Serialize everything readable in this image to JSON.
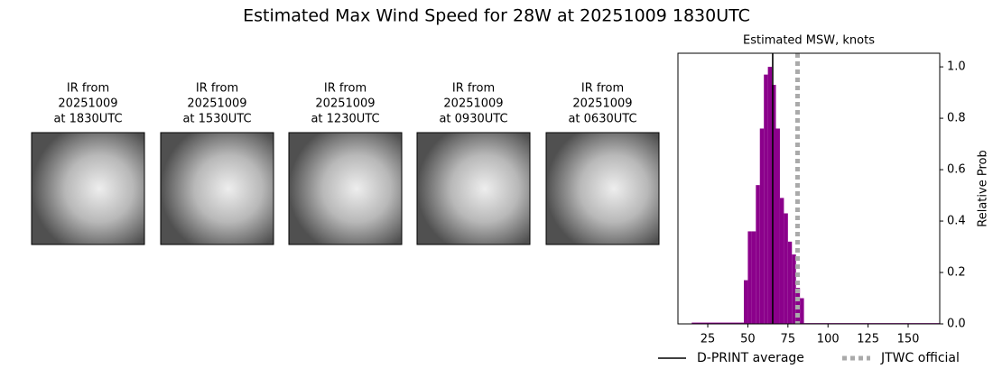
{
  "title": "Estimated Max Wind Speed for 28W at 20251009 1830UTC",
  "panels": [
    {
      "lines": [
        "IR from",
        "20251009",
        "at 1830UTC"
      ]
    },
    {
      "lines": [
        "IR from",
        "20251009",
        "at 1530UTC"
      ]
    },
    {
      "lines": [
        "IR from",
        "20251009",
        "at 1230UTC"
      ]
    },
    {
      "lines": [
        "IR from",
        "20251009",
        "at 0930UTC"
      ]
    },
    {
      "lines": [
        "IR from",
        "20251009",
        "at 0630UTC"
      ]
    }
  ],
  "chart_data": {
    "type": "histogram",
    "title": "Estimated MSW, knots",
    "ylabel": "Relative Prob",
    "bins": [
      15,
      47.5,
      50,
      52.5,
      55,
      57.5,
      60,
      62.5,
      65,
      67.5,
      70,
      72.5,
      75,
      77.5,
      80,
      82.5,
      85,
      170
    ],
    "values": [
      0.005,
      0.17,
      0.36,
      0.36,
      0.54,
      0.76,
      0.97,
      1.0,
      0.93,
      0.76,
      0.49,
      0.43,
      0.32,
      0.27,
      0.14,
      0.1,
      0.003
    ],
    "color": "#8b008b",
    "xlim": [
      6.4,
      169.7
    ],
    "ylim": [
      0,
      1.053
    ],
    "xticks": [
      25,
      50,
      75,
      100,
      125,
      150
    ],
    "yticks": [
      {
        "value": 0,
        "label": "0.0"
      },
      {
        "value": 0.2,
        "label": "0.2"
      },
      {
        "value": 0.4,
        "label": "0.4"
      },
      {
        "value": 0.6,
        "label": "0.6"
      },
      {
        "value": 0.8,
        "label": "0.8"
      },
      {
        "value": 1,
        "label": "1.0"
      }
    ],
    "yaxis_side": "right",
    "reference_lines": [
      {
        "name": "D-PRINT average",
        "color": "#000000",
        "value": 65.5,
        "dash": "solid"
      },
      {
        "name": "JTWC official",
        "color": "#aaaaaa",
        "value": 81,
        "dash": "dotted"
      }
    ]
  }
}
